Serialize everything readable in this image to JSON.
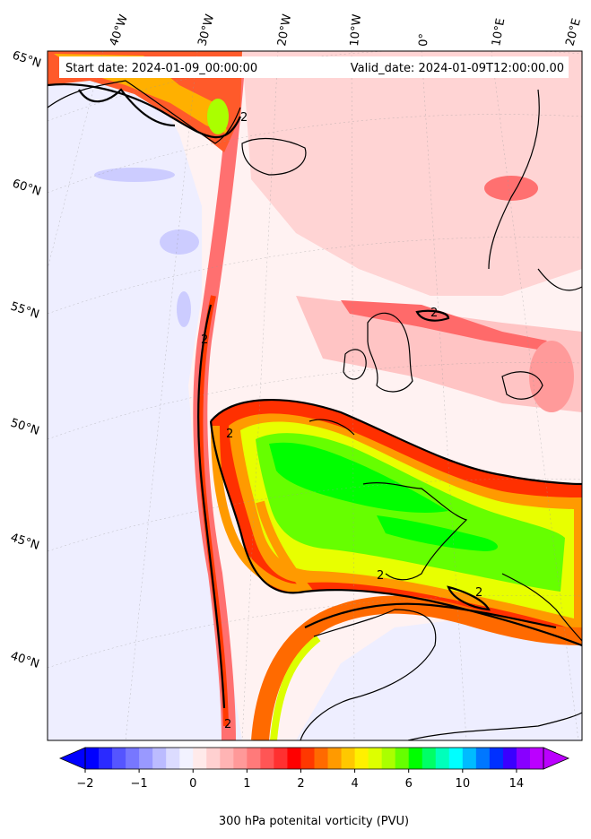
{
  "header": {
    "start_date": "Start date: 2024-01-09_00:00:00",
    "valid_date": "Valid_date: 2024-01-09T12:00:00.00"
  },
  "map": {
    "projection": "lambert-conformal",
    "lon_labels": [
      "40°W",
      "30°W",
      "20°W",
      "10°W",
      "0°",
      "10°E",
      "20°E"
    ],
    "lat_labels": [
      "65°N",
      "60°N",
      "55°N",
      "50°N",
      "45°N",
      "40°N"
    ],
    "contour_level": "2",
    "colors": {
      "background_low": "#eeeeff",
      "land_line": "#000000",
      "contour_line": "#000000"
    }
  },
  "colorbar": {
    "title": "300 hPa potenital vorticity (PVU)",
    "tick_labels": [
      "−2",
      "−1",
      "0",
      "1",
      "2",
      "4",
      "6",
      "10",
      "14"
    ],
    "colors": [
      "#0000ff",
      "#2a2aff",
      "#5555ff",
      "#7777ff",
      "#9999ff",
      "#bbbbff",
      "#dcdcff",
      "#f2f2ff",
      "#ffeaea",
      "#ffd0d0",
      "#ffb4b4",
      "#ff9999",
      "#ff7a7a",
      "#ff5555",
      "#ff3030",
      "#ff0000",
      "#ff3800",
      "#ff6a00",
      "#ff9a00",
      "#ffc800",
      "#fff000",
      "#ddff00",
      "#aaff00",
      "#66ff00",
      "#00ff00",
      "#00ff66",
      "#00ffbb",
      "#00ffff",
      "#00bbff",
      "#0077ff",
      "#0030ff",
      "#3a00ff",
      "#8800ff",
      "#bb00ff"
    ]
  }
}
